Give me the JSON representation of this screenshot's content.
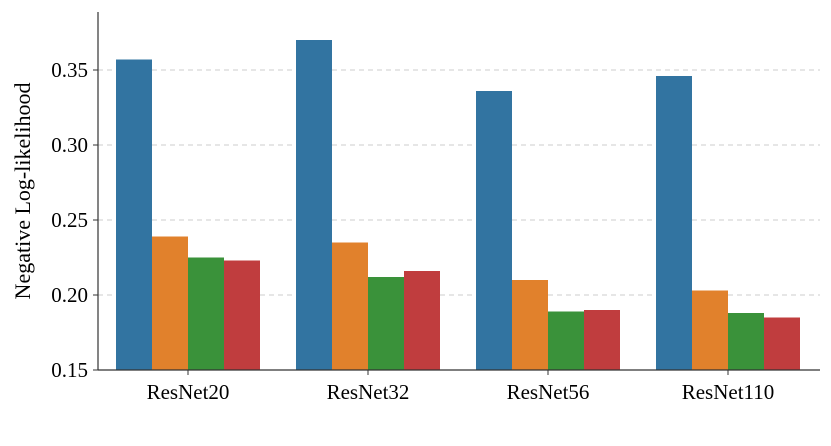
{
  "chart_data": {
    "type": "bar",
    "title": "",
    "xlabel": "",
    "ylabel": "Negative Log-likelihood",
    "categories": [
      "ResNet20",
      "ResNet32",
      "ResNet56",
      "ResNet110"
    ],
    "series": [
      {
        "color": "#3274a1",
        "values": [
          0.357,
          0.37,
          0.336,
          0.346
        ]
      },
      {
        "color": "#e1812c",
        "values": [
          0.239,
          0.235,
          0.21,
          0.203
        ]
      },
      {
        "color": "#3a923a",
        "values": [
          0.225,
          0.212,
          0.189,
          0.188
        ]
      },
      {
        "color": "#c03d3e",
        "values": [
          0.223,
          0.216,
          0.19,
          0.185
        ]
      }
    ],
    "ylim": [
      0.15,
      0.39
    ],
    "yticks": [
      "0.15",
      "0.20",
      "0.25",
      "0.30",
      "0.35"
    ],
    "grid": "horizontal-dashed",
    "legend": "none"
  }
}
